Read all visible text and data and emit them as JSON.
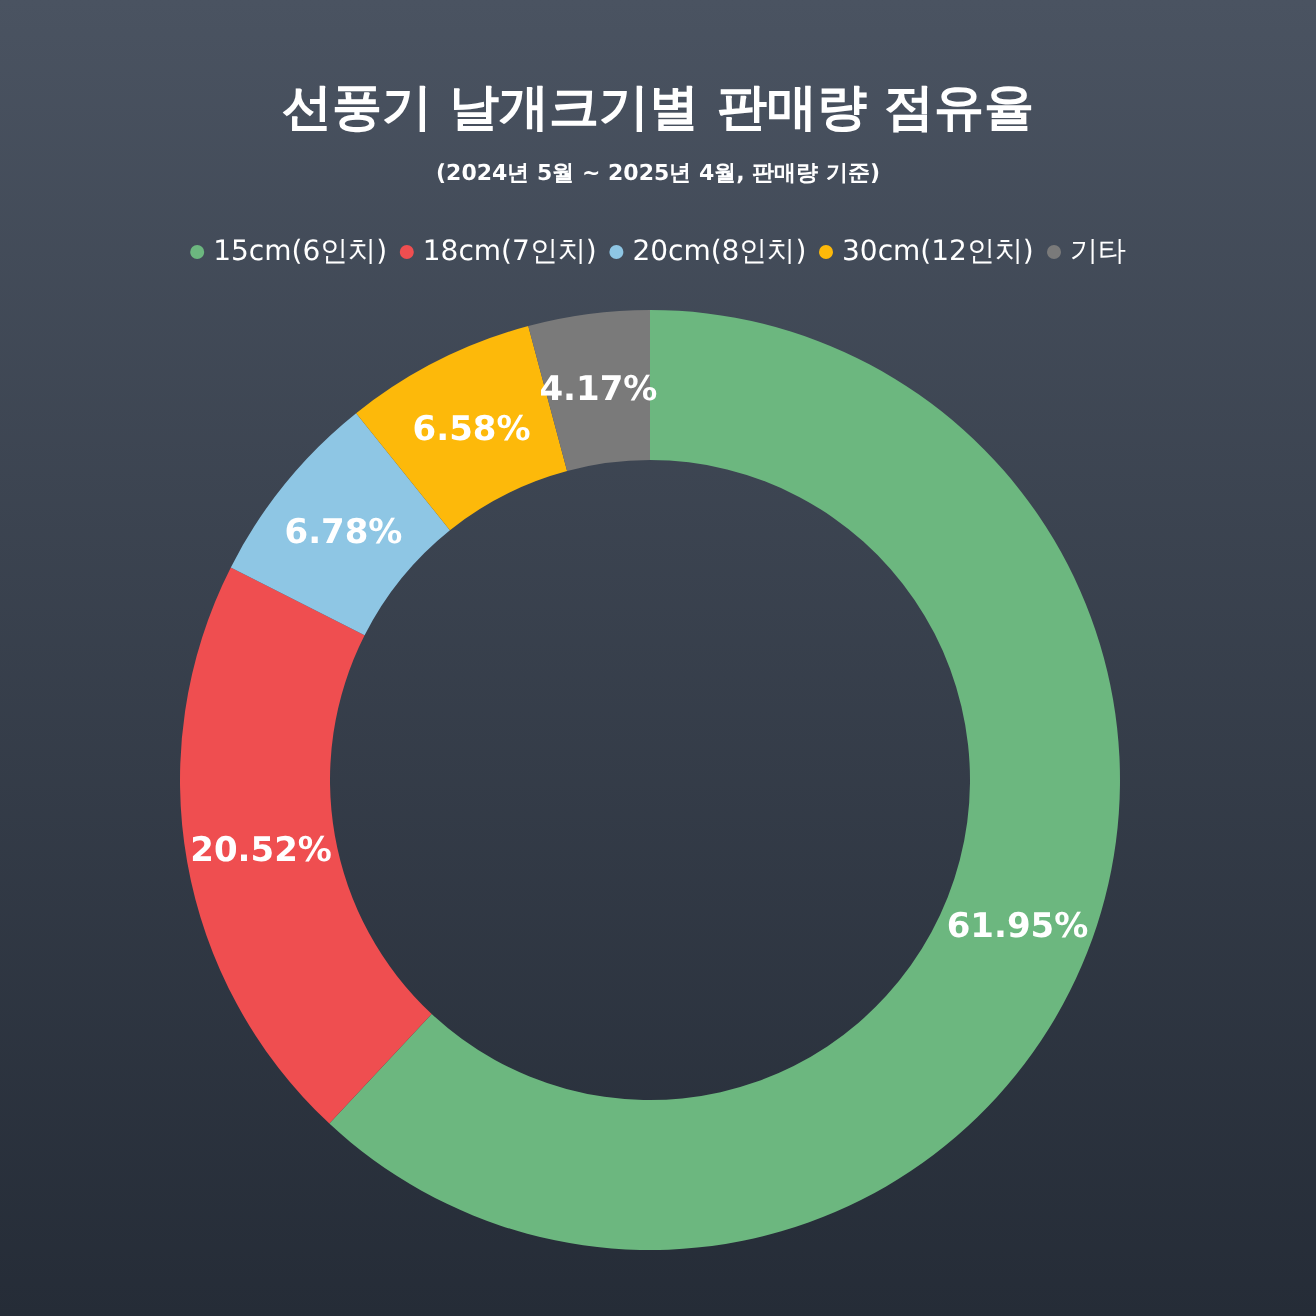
{
  "chart_data": {
    "type": "donut",
    "title": "선풍기 날개크기별 판매량 점유율",
    "subtitle": "(2024년 5월 ~ 2025년 4월, 판매량 기준)",
    "categories": [
      "15cm(6인치)",
      "18cm(7인치)",
      "20cm(8인치)",
      "30cm(12인치)",
      "기타"
    ],
    "values": [
      61.95,
      20.52,
      6.78,
      6.58,
      4.17
    ],
    "value_labels": [
      "61.95%",
      "20.52%",
      "6.78%",
      "6.58%",
      "4.17%"
    ],
    "colors": [
      "#6cb77f",
      "#ef4e50",
      "#8ec6e4",
      "#fdb90a",
      "#7a7a7a"
    ],
    "legend": "top"
  }
}
